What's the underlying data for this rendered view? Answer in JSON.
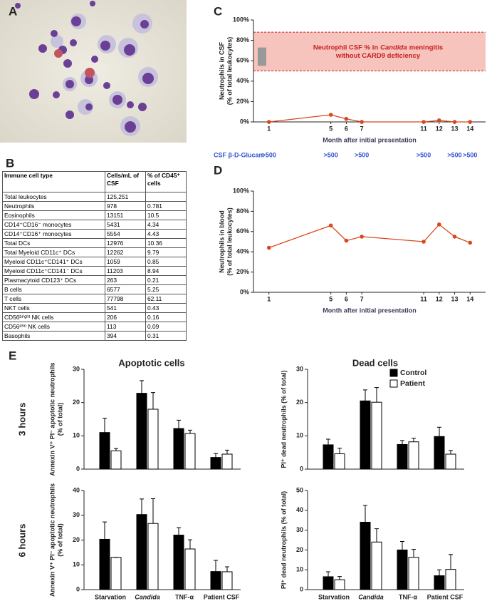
{
  "panels": [
    "A",
    "B",
    "C",
    "D",
    "E"
  ],
  "row_labels": [
    "3 hours",
    "6 hours"
  ],
  "table": {
    "header": [
      "Immune cell type",
      "Cells/mL of CSF",
      "% of CD45⁺ cells"
    ],
    "rows": [
      [
        "Total leukocytes",
        "125,251"
      ],
      [
        "Neutrophils",
        "978",
        "0.781"
      ],
      [
        "Eosinophils",
        "13151",
        "10.5"
      ],
      [
        "CD14⁺CD16⁻ monocytes",
        "5431",
        "4.34"
      ],
      [
        "CD14⁺CD16⁺ monocytes",
        "5554",
        "4.43"
      ],
      [
        "Total DCs",
        "12976",
        "10.36"
      ],
      [
        "Total Myeloid CD11c⁺ DCs",
        "12262",
        "9.79"
      ],
      [
        "Myeloid CD11c⁺CD141⁺ DCs",
        "1059",
        "0.85"
      ],
      [
        "Myeloid CD11c⁺CD141⁻ DCs",
        "11203",
        "8.94"
      ],
      [
        "Plasmacytoid CD123⁺ DCs",
        "263",
        "0.21"
      ],
      [
        "B cells",
        "6577",
        "5.25"
      ],
      [
        "T cells",
        "77798",
        "62.11"
      ],
      [
        "NKT cells",
        "541",
        "0.43"
      ],
      [
        "CD56ᵇʳⁱᵍʰᵗ NK cells",
        "206",
        "0.16"
      ],
      [
        "CD56ᵈⁱᵐ NK cells",
        "113",
        "0.09"
      ],
      [
        "Basophils",
        "394",
        "0.31"
      ]
    ]
  },
  "chart_data": [
    {
      "type": "line",
      "xlabel": "Month after initial presentation",
      "ylabel": [
        "Neutrophils in CSF",
        "(% of total leukocytes)"
      ],
      "x": [
        1,
        5,
        6,
        7,
        11,
        12,
        13,
        14
      ],
      "values": [
        0,
        7,
        3,
        0,
        0,
        1.5,
        0,
        0
      ],
      "color": "#d9471a",
      "xlim": [
        0,
        15
      ],
      "xticks": [
        1,
        5,
        6,
        7,
        11,
        12,
        13,
        14
      ],
      "ylim": [
        0,
        100
      ],
      "yticks": [
        {
          "value": 0,
          "label": "0%"
        },
        {
          "value": 20,
          "label": "20%"
        },
        {
          "value": 40,
          "label": "40%"
        },
        {
          "value": 60,
          "label": "60%"
        },
        {
          "value": 80,
          "label": "80%"
        },
        {
          "value": 100,
          "label": "100%"
        }
      ],
      "band": [
        50,
        88
      ],
      "annotation": {
        "line1": [
          "Neutrophil CSF % in",
          "Candida",
          "meningitis"
        ],
        "line2": "without CARD9 deficiency"
      },
      "range_box": {
        "x": 0.55,
        "y": [
          55,
          73
        ]
      },
      "glucan": {
        "label": "CSF β-D-Glucan:",
        "x": [
          1,
          5,
          7,
          11,
          13,
          14
        ],
        "labels": [
          ">500",
          ">500",
          ">500",
          ">500",
          ">500",
          ">500"
        ]
      }
    },
    {
      "type": "line",
      "xlabel": "Month after initial presentation",
      "ylabel": [
        "Neutrophils in blood",
        "(% of total leukocytes)"
      ],
      "x": [
        1,
        5,
        6,
        7,
        11,
        12,
        13,
        14
      ],
      "values": [
        44,
        66,
        51,
        55,
        50,
        67,
        55,
        49
      ],
      "color": "#d9471a",
      "xlim": [
        0,
        15
      ],
      "xticks": [
        1,
        5,
        6,
        7,
        11,
        12,
        13,
        14
      ],
      "ylim": [
        0,
        100
      ],
      "yticks": [
        {
          "value": 0,
          "label": "0%"
        },
        {
          "value": 20,
          "label": "20%"
        },
        {
          "value": 40,
          "label": "40%"
        },
        {
          "value": 60,
          "label": "60%"
        },
        {
          "value": 80,
          "label": "80%"
        },
        {
          "value": 100,
          "label": "100%"
        }
      ]
    },
    {
      "type": "bar",
      "title": "Apoptotic cells",
      "ylabel": [
        "Annexin V⁺ PI⁻ apoptotic neutrophils",
        "(% of total)"
      ],
      "categories": [
        null,
        null,
        null,
        null
      ],
      "ylim": [
        0,
        30
      ],
      "yticks": [
        0,
        10,
        20,
        30
      ],
      "series": [
        {
          "color": "#000000",
          "values": [
            11,
            22.8,
            12.2,
            3.5
          ],
          "errors": [
            4.3,
            3.8,
            2.5,
            1.2
          ]
        },
        {
          "color": "#ffffff",
          "values": [
            5.5,
            18,
            10.7,
            4.5
          ],
          "errors": [
            0.7,
            5,
            1,
            1.2
          ]
        }
      ]
    },
    {
      "type": "bar",
      "title": "Dead cells",
      "ylabel": [
        "PI⁺ dead neutrophils (% of total)"
      ],
      "legend": "top-right",
      "categories": [
        null,
        null,
        null,
        null
      ],
      "ylim": [
        0,
        30
      ],
      "yticks": [
        0,
        10,
        20,
        30
      ],
      "series": [
        {
          "name": "Control",
          "color": "#000000",
          "values": [
            7.3,
            20.5,
            7.4,
            9.8
          ],
          "errors": [
            1.7,
            3.3,
            1.2,
            2.8
          ]
        },
        {
          "name": "Patient",
          "color": "#ffffff",
          "values": [
            4.6,
            20.1,
            8.2,
            4.5
          ],
          "errors": [
            1.7,
            4.4,
            1.1,
            1.1
          ]
        }
      ]
    },
    {
      "type": "bar",
      "ylabel": [
        "Annexin V⁺ PI⁻ apoptotic neutrophils",
        "(% of total)"
      ],
      "categories": [
        "Starvation",
        "Candida",
        "TNF-α",
        "Patient CSF"
      ],
      "italic_category": 1,
      "ylim": [
        0,
        40
      ],
      "yticks": [
        0,
        10,
        20,
        30,
        40
      ],
      "series": [
        {
          "color": "#000000",
          "values": [
            20.3,
            30.3,
            22,
            7.3
          ],
          "errors": [
            7,
            6.3,
            3,
            4.5
          ]
        },
        {
          "color": "#ffffff",
          "values": [
            13,
            26.7,
            16.4,
            7.2
          ],
          "errors": [
            0,
            10,
            3.7,
            2
          ]
        }
      ]
    },
    {
      "type": "bar",
      "ylabel": [
        "PI⁺ dead neutrophils (% of total)"
      ],
      "categories": [
        "Starvation",
        "Candida",
        "TNF-α",
        "Patient CSF"
      ],
      "italic_category": 1,
      "ylim": [
        0,
        50
      ],
      "yticks": [
        0,
        10,
        20,
        30,
        40,
        50
      ],
      "series": [
        {
          "color": "#000000",
          "values": [
            6.5,
            34,
            20,
            7
          ],
          "errors": [
            2.5,
            8.5,
            4.3,
            3
          ]
        },
        {
          "color": "#ffffff",
          "values": [
            5,
            24,
            16.3,
            10.2
          ],
          "errors": [
            1.6,
            6.7,
            4,
            7.5
          ]
        }
      ]
    }
  ]
}
